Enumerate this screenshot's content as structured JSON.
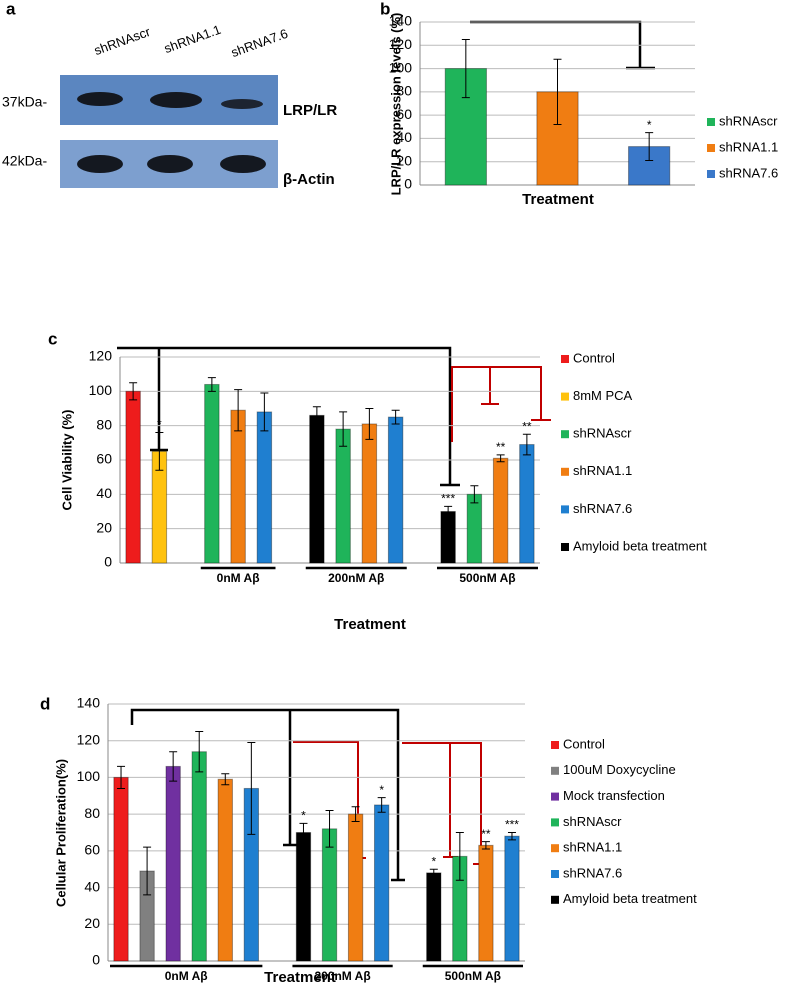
{
  "panel_labels": [
    "a",
    "b",
    "c",
    "d"
  ],
  "blot": {
    "lanes": [
      "shRNAscr",
      "shRNA1.1",
      "shRNA7.6"
    ],
    "markers": [
      "37kDa-",
      "42kDa-"
    ],
    "proteins": [
      "LRP/LR",
      "β-Actin"
    ]
  },
  "chart_data": [
    {
      "type": "bar",
      "ylabel": "LRP/LR expression levels (%)",
      "xlabel": "Treatment",
      "categories": [
        null
      ],
      "ylim": [
        0,
        140
      ],
      "yticks": [
        0,
        20,
        40,
        60,
        80,
        100,
        120,
        140
      ],
      "grid": true,
      "series": [
        {
          "name": "shRNAscr",
          "color": "#1fb45a",
          "values": [
            100
          ],
          "errors": [
            25
          ]
        },
        {
          "name": "shRNA1.1",
          "color": "#f07d12",
          "values": [
            80
          ],
          "errors": [
            28
          ]
        },
        {
          "name": "shRNA7.6",
          "color": "#3a78c9",
          "values": [
            33
          ],
          "errors": [
            12
          ],
          "annotations": [
            "*"
          ],
          "annotation_color": "#000000"
        }
      ]
    },
    {
      "type": "bar",
      "ylabel": "Cell Viability (%)",
      "xlabel": "Treatment",
      "categories": [
        null,
        "0nM Aβ",
        "200nM Aβ",
        "500nM Aβ"
      ],
      "ylim": [
        0,
        120
      ],
      "yticks": [
        0,
        20,
        40,
        60,
        80,
        100,
        120
      ],
      "grid": true,
      "series": [
        {
          "name": "Control",
          "color": "#ee1c1c",
          "values": [
            100,
            null,
            null,
            null
          ],
          "errors": [
            5,
            null,
            null,
            null
          ]
        },
        {
          "name": "8mM PCA",
          "color": "#ffc20e",
          "values": [
            65,
            null,
            null,
            null
          ],
          "errors": [
            11,
            null,
            null,
            null
          ],
          "annotations": [
            "*",
            null,
            null,
            null
          ],
          "annotation_color": "#000000"
        },
        {
          "name": "shRNAscr",
          "color": "#1fb45a",
          "values": [
            null,
            104,
            78,
            40
          ],
          "errors": [
            null,
            4,
            10,
            5
          ]
        },
        {
          "name": "shRNA1.1",
          "color": "#f07d12",
          "values": [
            null,
            89,
            81,
            61
          ],
          "errors": [
            null,
            12,
            9,
            2
          ],
          "annotations": [
            null,
            null,
            null,
            "**"
          ],
          "annotation_color": "#e00000"
        },
        {
          "name": "shRNA7.6",
          "color": "#1f7fd0",
          "values": [
            null,
            88,
            85,
            69
          ],
          "errors": [
            null,
            11,
            4,
            6
          ],
          "annotations": [
            null,
            null,
            null,
            "**"
          ],
          "annotation_color": "#e00000"
        },
        {
          "name": "Amyloid beta treatment",
          "color": "#000000",
          "values": [
            null,
            null,
            86,
            30
          ],
          "errors": [
            null,
            null,
            5,
            3
          ],
          "annotations": [
            null,
            null,
            null,
            "***"
          ],
          "annotation_color": "#000000"
        }
      ]
    },
    {
      "type": "bar",
      "ylabel": "Cellular Proliferation(%)",
      "xlabel": "Treatment",
      "categories": [
        "0nM Aβ",
        "200nM Aβ",
        "500nM Aβ"
      ],
      "ylim": [
        0,
        140
      ],
      "yticks": [
        0,
        20,
        40,
        60,
        80,
        100,
        120,
        140
      ],
      "grid": true,
      "series": [
        {
          "name": "Control",
          "color": "#ee1c1c",
          "values": [
            100,
            null,
            null
          ],
          "errors": [
            6,
            null,
            null
          ]
        },
        {
          "name": "100uM Doxycycline",
          "color": "#808080",
          "values": [
            49,
            null,
            null
          ],
          "errors": [
            13,
            null,
            null
          ]
        },
        {
          "name": "Mock transfection",
          "color": "#7030a0",
          "values": [
            106,
            null,
            null
          ],
          "errors": [
            8,
            null,
            null
          ]
        },
        {
          "name": "shRNAscr",
          "color": "#1fb45a",
          "values": [
            114,
            72,
            57
          ],
          "errors": [
            11,
            10,
            13
          ]
        },
        {
          "name": "shRNA1.1",
          "color": "#f07d12",
          "values": [
            99,
            80,
            63
          ],
          "errors": [
            3,
            4,
            2
          ],
          "annotations": [
            null,
            null,
            "**"
          ],
          "annotation_color": "#e00000"
        },
        {
          "name": "shRNA7.6",
          "color": "#1f7fd0",
          "values": [
            94,
            85,
            68
          ],
          "errors": [
            25,
            4,
            2
          ],
          "annotations": [
            null,
            "*",
            "***"
          ],
          "annotation_color": "#e00000"
        },
        {
          "name": "Amyloid beta treatment",
          "color": "#000000",
          "values": [
            null,
            70,
            48
          ],
          "errors": [
            null,
            5,
            2
          ],
          "annotations": [
            null,
            "*",
            "*"
          ],
          "annotation_color": "#000000"
        }
      ]
    }
  ]
}
